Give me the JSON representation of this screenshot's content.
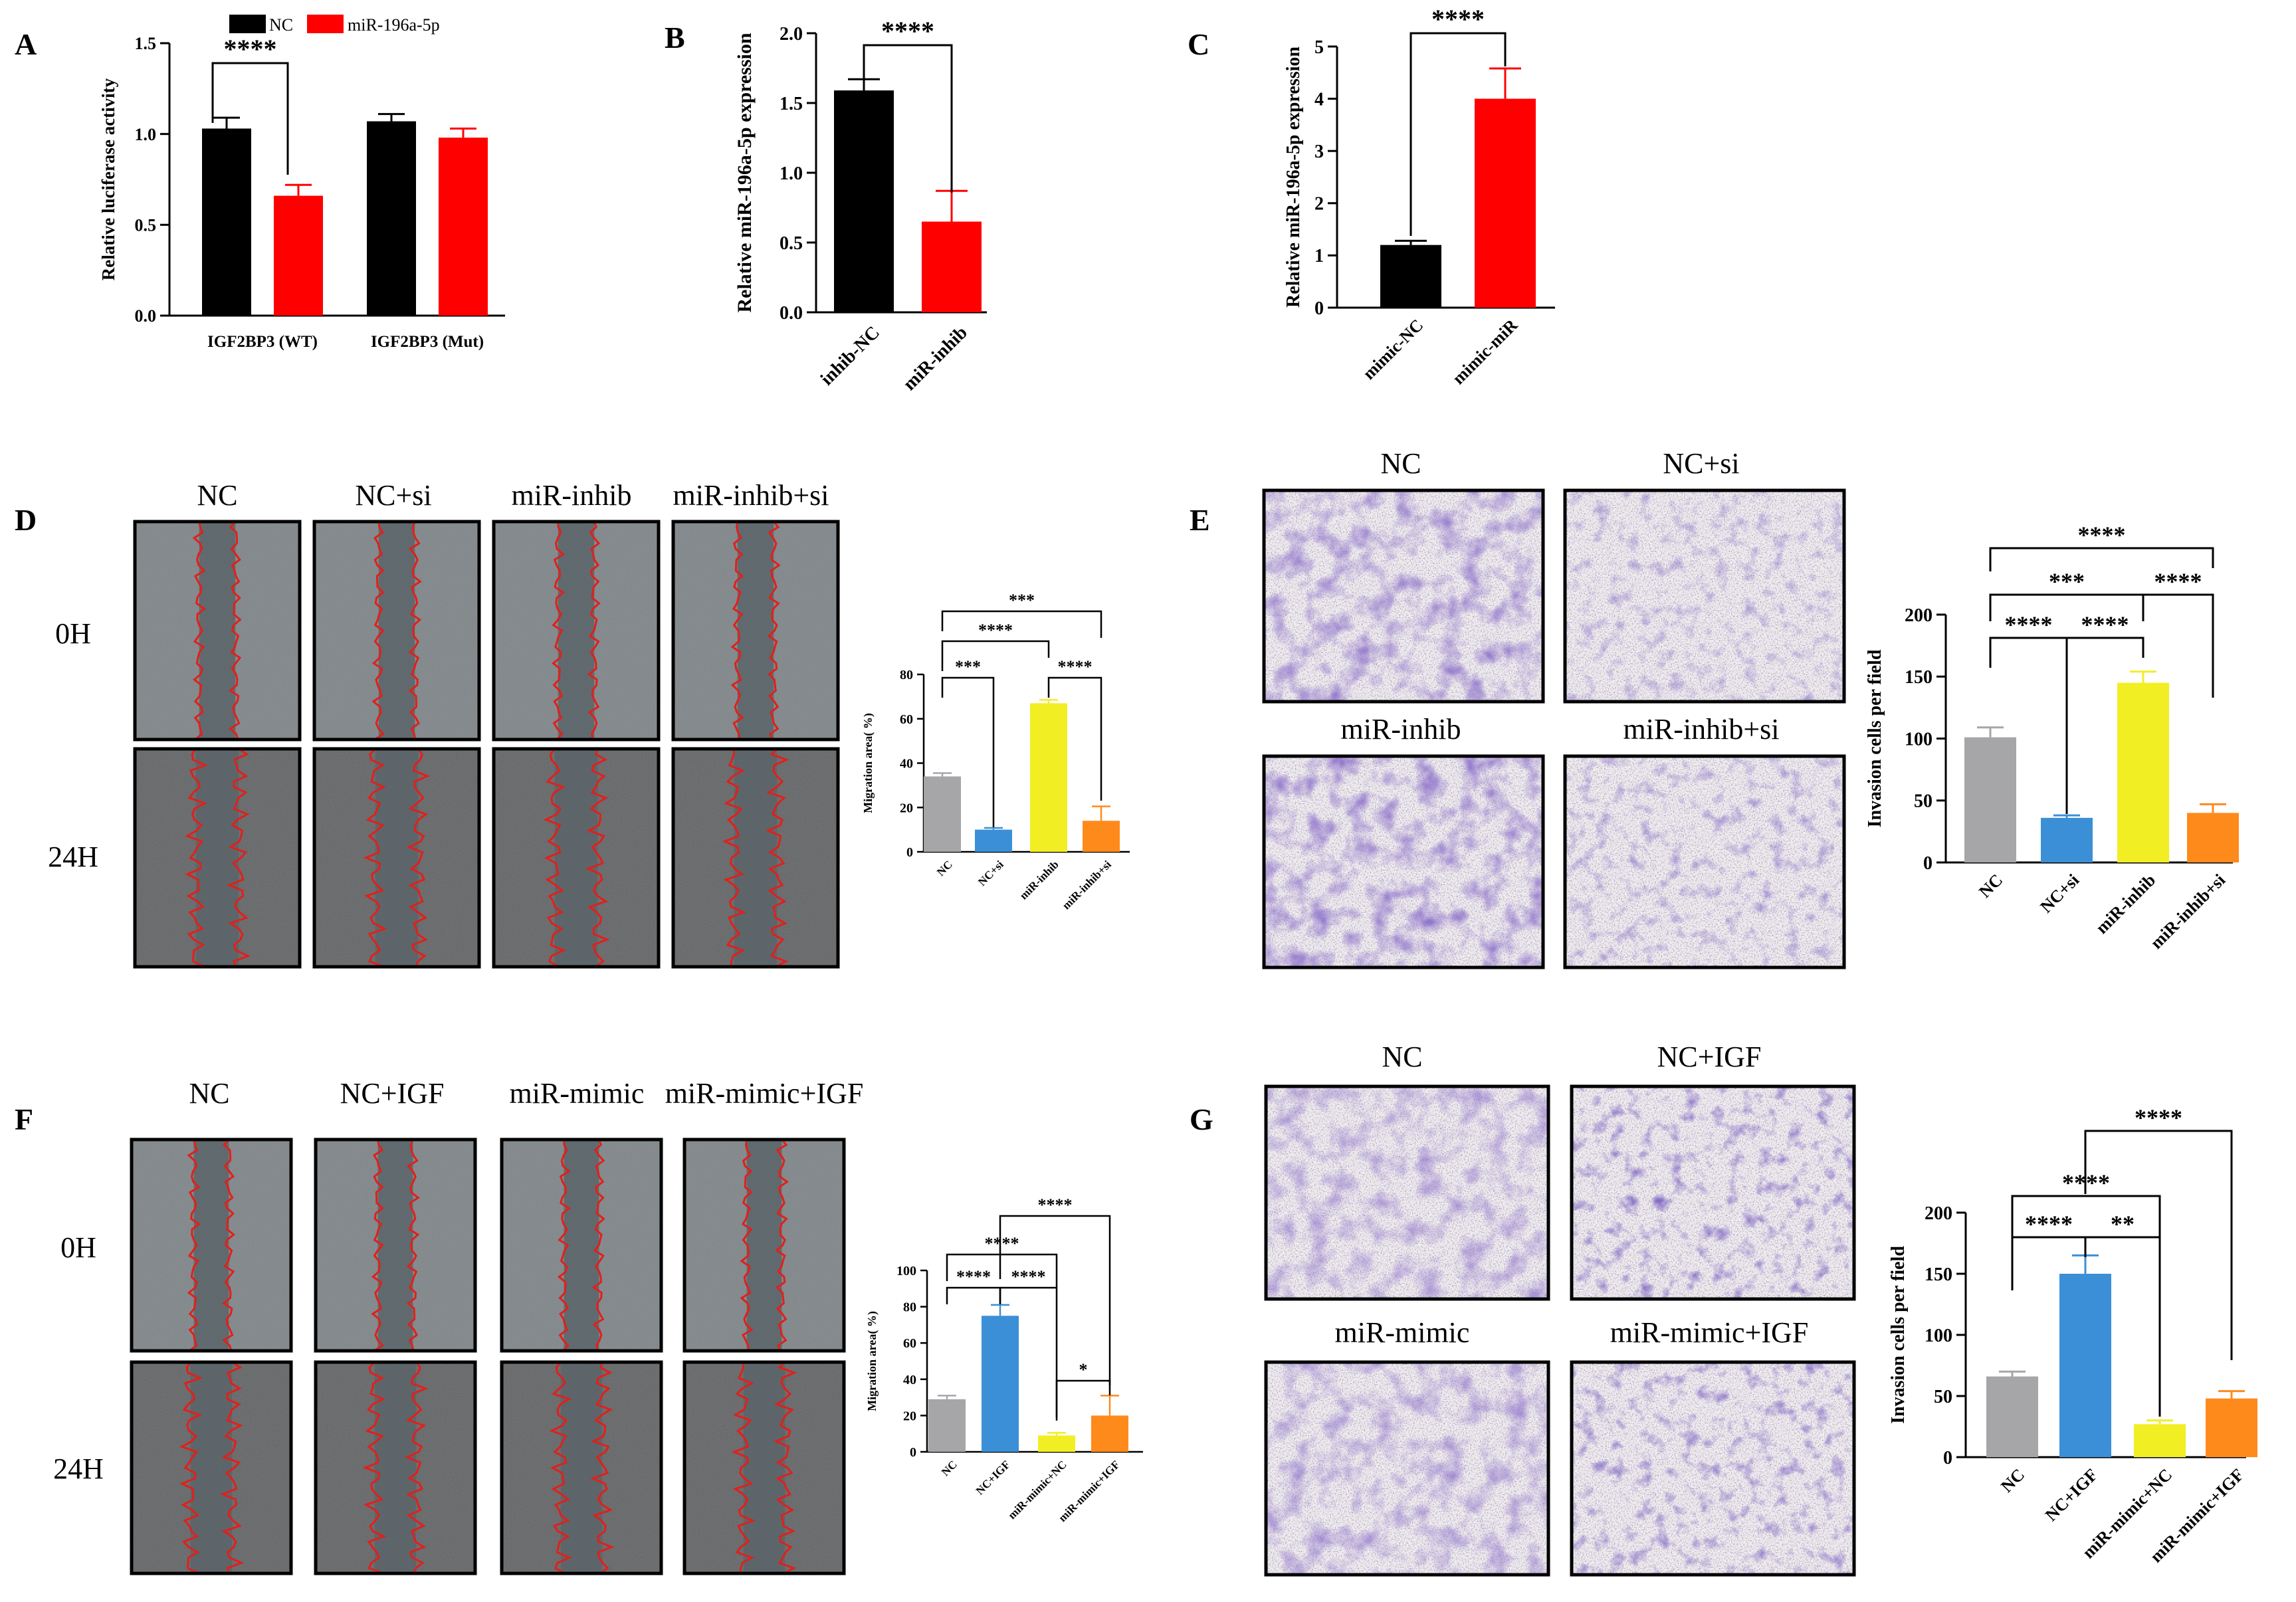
{
  "panels": {
    "A": {
      "letter": "A",
      "chart_data": {
        "type": "bar",
        "title": "",
        "ylabel": "Relative luciferase activity",
        "xlabel": "",
        "ylim": [
          0,
          1.5
        ],
        "yticks": [
          "0.0",
          "0.5",
          "1.0",
          "1.5"
        ],
        "ytick_values": [
          0,
          0.5,
          1.0,
          1.5
        ],
        "categories": [
          "IGF2BP3 (WT)",
          "IGF2BP3 (Mut)"
        ],
        "series": [
          {
            "name": "NC",
            "color": "#000000",
            "values": [
              1.03,
              1.07
            ],
            "errors": [
              0.06,
              0.04
            ]
          },
          {
            "name": "miR-196a-5p",
            "color": "#ff0000",
            "values": [
              0.66,
              0.98
            ],
            "errors": [
              0.06,
              0.05
            ]
          }
        ],
        "legend": [
          "NC",
          "miR-196a-5p"
        ],
        "significance": [
          "****"
        ]
      }
    },
    "B": {
      "letter": "B",
      "chart_data": {
        "type": "bar",
        "ylabel": "Relative miR-196a-5p expression",
        "ylim": [
          0,
          2.0
        ],
        "yticks": [
          "0.0",
          "0.5",
          "1.0",
          "1.5",
          "2.0"
        ],
        "ytick_values": [
          0,
          0.5,
          1.0,
          1.5,
          2.0
        ],
        "categories": [
          "inhib-NC",
          "miR-inhib"
        ],
        "values": [
          1.59,
          0.65
        ],
        "errors": [
          0.08,
          0.22
        ],
        "colors": [
          "#000000",
          "#ff0000"
        ],
        "significance": [
          "****"
        ]
      }
    },
    "C": {
      "letter": "C",
      "chart_data": {
        "type": "bar",
        "ylabel": "Relative miR-196a-5p expression",
        "ylim": [
          0,
          5
        ],
        "yticks": [
          "0",
          "1",
          "2",
          "3",
          "4",
          "5"
        ],
        "ytick_values": [
          0,
          1,
          2,
          3,
          4,
          5
        ],
        "categories": [
          "mimic-NC",
          "mimic-miR"
        ],
        "values": [
          1.2,
          4.0
        ],
        "errors": [
          0.08,
          0.58
        ],
        "colors": [
          "#000000",
          "#ff0000"
        ],
        "significance": [
          "****"
        ]
      }
    },
    "D": {
      "letter": "D",
      "column_labels": [
        "NC",
        "NC+si",
        "miR-inhib",
        "miR-inhib+si"
      ],
      "row_labels": [
        "0H",
        "24H"
      ],
      "chart_data": {
        "type": "bar",
        "ylabel": "Migration area( %)",
        "ylim": [
          0,
          80
        ],
        "yticks": [
          "0",
          "20",
          "40",
          "60",
          "80"
        ],
        "ytick_values": [
          0,
          20,
          40,
          60,
          80
        ],
        "categories": [
          "NC",
          "NC+si",
          "miR-inhib",
          "miR-inhib+si"
        ],
        "values": [
          34,
          10,
          67,
          14
        ],
        "errors": [
          1.5,
          0.8,
          1.5,
          6.5
        ],
        "colors": [
          "#a6a6a8",
          "#3b8fd6",
          "#f2ee24",
          "#ff8a1c"
        ],
        "significance": [
          "***",
          "****",
          "****",
          "***"
        ]
      }
    },
    "E": {
      "letter": "E",
      "image_labels": [
        "NC",
        "NC+si",
        "miR-inhib",
        "miR-inhib+si"
      ],
      "chart_data": {
        "type": "bar",
        "ylabel": "Invasion cells per field",
        "ylim": [
          0,
          200
        ],
        "yticks": [
          "0",
          "50",
          "100",
          "150",
          "200"
        ],
        "ytick_values": [
          0,
          50,
          100,
          150,
          200
        ],
        "categories": [
          "NC",
          "NC+si",
          "miR-inhib",
          "miR-inhib+si"
        ],
        "values": [
          101,
          36,
          145,
          40
        ],
        "errors": [
          8,
          2,
          9,
          7
        ],
        "colors": [
          "#a6a6a8",
          "#3b8fd6",
          "#f2ee24",
          "#ff8a1c"
        ],
        "significance": [
          "****",
          "****",
          "***",
          "****",
          "****"
        ]
      }
    },
    "F": {
      "letter": "F",
      "column_labels": [
        "NC",
        "NC+IGF",
        "miR-mimic",
        "miR-mimic+IGF"
      ],
      "row_labels": [
        "0H",
        "24H"
      ],
      "chart_data": {
        "type": "bar",
        "ylabel": "Migration area( %)",
        "ylim": [
          0,
          100
        ],
        "yticks": [
          "0",
          "20",
          "40",
          "60",
          "80",
          "100"
        ],
        "ytick_values": [
          0,
          20,
          40,
          60,
          80,
          100
        ],
        "categories": [
          "NC",
          "NC+IGF",
          "miR-mimic+NC",
          "miR-mimic+IGF"
        ],
        "values": [
          29,
          75,
          9,
          20
        ],
        "errors": [
          2,
          6,
          1.5,
          11
        ],
        "colors": [
          "#a6a6a8",
          "#3b8fd6",
          "#f2ee24",
          "#ff8a1c"
        ],
        "significance": [
          "****",
          "****",
          "****",
          "****",
          "*"
        ]
      }
    },
    "G": {
      "letter": "G",
      "image_labels": [
        "NC",
        "NC+IGF",
        "miR-mimic",
        "miR-mimic+IGF"
      ],
      "chart_data": {
        "type": "bar",
        "ylabel": "Invasion cells per field",
        "ylim": [
          0,
          200
        ],
        "yticks": [
          "0",
          "50",
          "100",
          "150",
          "200"
        ],
        "ytick_values": [
          0,
          50,
          100,
          150,
          200
        ],
        "categories": [
          "NC",
          "NC+IGF",
          "miR-mimic+NC",
          "miR-mimic+IGF"
        ],
        "values": [
          66,
          150,
          27,
          48
        ],
        "errors": [
          4,
          15,
          3,
          6
        ],
        "colors": [
          "#a6a6a8",
          "#3b8fd6",
          "#f2ee24",
          "#ff8a1c"
        ],
        "significance": [
          "****",
          "**",
          "****",
          "****"
        ]
      }
    }
  },
  "colors": {
    "wound_gap": "#5b6468",
    "wound_bg": "#7d8487",
    "wound_edge": "#e0201c",
    "transwell_bg": "#f1ecef",
    "cell_dark": "#3e2a8c",
    "cell_light": "#9a6fc2"
  }
}
